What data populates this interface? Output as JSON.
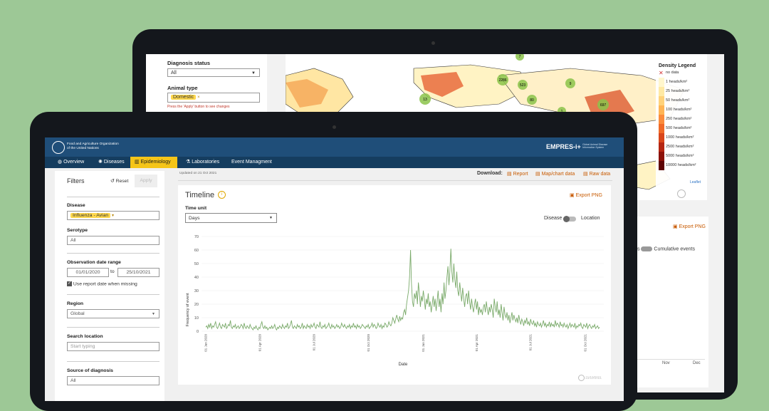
{
  "back": {
    "filters": {
      "diagnosis_status_label": "Diagnosis status",
      "diagnosis_status_value": "All",
      "animal_type_label": "Animal type",
      "animal_type_value": "Domestic",
      "apply_note": "Press the 'Apply' button to see changes"
    },
    "map": {
      "cluster_labels": [
        "7",
        "2286",
        "9",
        "523",
        "80",
        "13",
        "697",
        "1"
      ],
      "legend_title": "Density Legend",
      "legend_items": [
        "no data",
        "1 heads/km²",
        "25 heads/km²",
        "50 heads/km²",
        "100 heads/km²",
        "250 heads/km²",
        "500 heads/km²",
        "1000 heads/km²",
        "2500 heads/km²",
        "5000 heads/km²",
        "10000 heads/km²"
      ],
      "legend_colors": [
        "#ffffff",
        "#fff6cc",
        "#ffe9a3",
        "#ffd27a",
        "#ffb454",
        "#fb8c3c",
        "#f06a28",
        "#d9461b",
        "#b52612",
        "#8c1108",
        "#5e0404"
      ],
      "attribution": "Leaflet"
    },
    "second_card": {
      "export_label": "Export PNG",
      "toggle_left": "s",
      "toggle_right": "Cumulative events",
      "x_ticks": [
        "Nov",
        "Dec"
      ]
    }
  },
  "front": {
    "header": {
      "org_name_line1": "Food and Agriculture Organization",
      "org_name_line2": "of the United Nations",
      "brand": "EMPRES-i+",
      "brand_sub": "Global Animal Disease Information System"
    },
    "nav": [
      {
        "label": "Overview",
        "icon": "globe-icon"
      },
      {
        "label": "Diseases",
        "icon": "virus-icon"
      },
      {
        "label": "Epidemiology",
        "icon": "bar-chart-icon",
        "active": true
      },
      {
        "label": "Laboratories",
        "icon": "flask-icon"
      },
      {
        "label": "Event Managment",
        "icon": ""
      }
    ],
    "sidebar": {
      "title": "Filters",
      "reset": "Reset",
      "apply": "Apply",
      "disease_label": "Disease",
      "disease_value": "Influenza - Avian",
      "serotype_label": "Serotype",
      "serotype_value": "All",
      "obs_label": "Observation date range",
      "date_from": "01/01/2020",
      "date_sep": "to",
      "date_to": "25/10/2021",
      "use_report_date": "Use report date when missing",
      "region_label": "Region",
      "region_value": "Global",
      "search_label": "Search location",
      "search_placeholder": "Start typing",
      "source_label": "Source of diagnosis",
      "source_value": "All"
    },
    "toolbar": {
      "updated": "Updated on 21 Oct 2021",
      "download_label": "Download:",
      "report": "Report",
      "map_chart": "Map/chart data",
      "raw": "Raw data"
    },
    "timeline": {
      "title": "Timeline",
      "export_label": "Export PNG",
      "time_unit_label": "Time unit",
      "time_unit_value": "Days",
      "toggle_left": "Disease",
      "toggle_right": "Location",
      "footer_date": "21/10/2021"
    }
  },
  "chart_data": {
    "type": "line",
    "title": "Timeline",
    "xlabel": "Date",
    "ylabel": "Frequency of event",
    "ylim": [
      0,
      70
    ],
    "y_ticks": [
      0,
      10,
      20,
      30,
      40,
      50,
      60,
      70
    ],
    "x_ticks": [
      "01 Jan 2020",
      "01 Apr 2020",
      "01 Jul 2020",
      "01 Oct 2020",
      "01 Jan 2021",
      "01 Apr 2021",
      "01 Jul 2021",
      "01 Oct 2021"
    ],
    "series": [
      {
        "color": "#7aaa6a",
        "x_range": [
          "2020-01-01",
          "2021-10-25"
        ],
        "values": [
          3,
          4,
          2,
          5,
          3,
          6,
          2,
          4,
          3,
          5,
          7,
          3,
          2,
          4,
          6,
          3,
          2,
          5,
          4,
          3,
          6,
          2,
          3,
          5,
          4,
          8,
          3,
          2,
          4,
          3,
          5,
          2,
          3,
          4,
          2,
          3,
          5,
          4,
          2,
          6,
          3,
          2,
          4,
          3,
          2,
          5,
          3,
          2,
          1,
          3,
          2,
          4,
          2,
          1,
          3,
          2,
          5,
          7,
          3,
          2,
          4,
          2,
          3,
          1,
          2,
          3,
          2,
          4,
          2,
          3,
          5,
          2,
          1,
          3,
          2,
          4,
          3,
          2,
          5,
          3,
          2,
          4,
          3,
          6,
          2,
          3,
          5,
          8,
          3,
          2,
          4,
          3,
          2,
          5,
          3,
          4,
          2,
          3,
          6,
          2,
          4,
          3,
          2,
          5,
          3,
          4,
          2,
          5,
          3,
          4,
          6,
          3,
          2,
          5,
          4,
          3,
          7,
          3,
          2,
          4,
          3,
          5,
          2,
          3,
          4,
          6,
          3,
          2,
          5,
          3,
          4,
          2,
          3,
          5,
          3,
          4,
          2,
          3,
          6,
          4,
          3,
          5,
          3,
          2,
          4,
          3,
          5,
          2,
          4,
          3,
          6,
          3,
          4,
          2,
          5,
          3,
          4,
          2,
          3,
          5,
          4,
          3,
          2,
          4,
          3,
          5,
          2,
          3,
          4,
          6,
          3,
          5,
          4,
          2,
          3,
          6,
          4,
          3,
          5,
          2,
          4,
          3,
          6,
          5,
          3,
          4,
          7,
          5,
          4,
          6,
          10,
          8,
          6,
          9,
          12,
          9,
          7,
          11,
          8,
          10,
          9,
          14,
          16,
          12,
          20,
          25,
          30,
          40,
          60,
          35,
          22,
          18,
          28,
          24,
          30,
          20,
          36,
          28,
          18,
          26,
          22,
          30,
          24,
          16,
          24,
          20,
          28,
          18,
          22,
          14,
          20,
          26,
          18,
          24,
          15,
          22,
          30,
          18,
          24,
          14,
          28,
          20,
          36,
          24,
          30,
          40,
          48,
          34,
          45,
          61,
          44,
          36,
          50,
          38,
          32,
          44,
          30,
          26,
          36,
          28,
          22,
          32,
          24,
          18,
          26,
          28,
          20,
          30,
          22,
          16,
          24,
          18,
          14,
          20,
          24,
          16,
          22,
          12,
          18,
          14,
          16,
          12,
          18,
          20,
          14,
          22,
          16,
          12,
          18,
          14,
          20,
          16,
          10,
          24,
          18,
          14,
          22,
          12,
          16,
          10,
          20,
          14,
          8,
          18,
          12,
          10,
          14,
          8,
          12,
          6,
          10,
          14,
          8,
          12,
          9,
          7,
          10,
          6,
          12,
          8,
          5,
          9,
          7,
          4,
          8,
          6,
          10,
          5,
          7,
          4,
          9,
          6,
          5,
          8,
          4,
          6,
          3,
          7,
          5,
          4,
          6,
          3,
          5,
          8,
          4,
          6,
          3,
          5,
          4,
          7,
          3,
          6,
          4,
          5,
          3,
          8,
          4,
          6,
          5,
          3,
          7,
          4,
          5,
          3,
          6,
          4,
          3,
          5,
          2,
          4,
          6,
          3,
          5,
          4,
          3,
          6,
          2,
          4,
          3,
          5,
          4,
          6,
          3,
          2,
          5,
          4,
          3,
          6,
          2,
          4,
          5,
          3,
          2,
          4,
          3,
          5,
          2,
          3,
          4,
          2,
          3
        ]
      }
    ],
    "grid": true,
    "legend": "none"
  }
}
